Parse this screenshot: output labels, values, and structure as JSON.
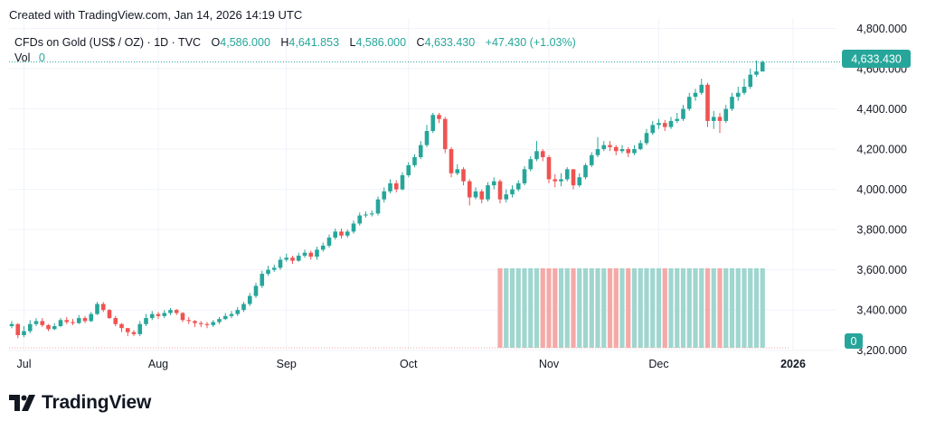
{
  "credit": "Created with TradingView.com, Jan 14, 2026 14:19 UTC",
  "symbol": {
    "name": "CFDs on Gold (US$ / OZ) · 1D · TVC",
    "o_label": "O",
    "o_value": "4,586.000",
    "h_label": "H",
    "h_value": "4,641.853",
    "l_label": "L",
    "l_value": "4,586.000",
    "c_label": "C",
    "c_value": "4,633.430",
    "change": "+47.430 (+1.03%)",
    "vol_label": "Vol",
    "vol_value": "0"
  },
  "current_price_label": "4,633.430",
  "volume_axis_label": "0",
  "brand": "TradingView",
  "colors": {
    "up": "#26a69a",
    "down": "#ef5350",
    "up_vol": "#9fd6cf",
    "down_vol": "#f5a9a7",
    "text": "#131722"
  },
  "chart_data": {
    "type": "candlestick",
    "title": "CFDs on Gold (US$ / OZ) · 1D · TVC",
    "y_ticks": [
      "4,800.000",
      "4,600.000",
      "4,400.000",
      "4,200.000",
      "4,000.000",
      "3,800.000",
      "3,600.000",
      "3,400.000",
      "3,200.000"
    ],
    "ylim": [
      3120,
      4800
    ],
    "x_ticks": [
      {
        "label": "Jul",
        "index": 2,
        "bold": false
      },
      {
        "label": "Aug",
        "index": 24,
        "bold": false
      },
      {
        "label": "Sep",
        "index": 45,
        "bold": false
      },
      {
        "label": "Oct",
        "index": 65,
        "bold": false
      },
      {
        "label": "Nov",
        "index": 88,
        "bold": false
      },
      {
        "label": "Dec",
        "index": 106,
        "bold": false
      },
      {
        "label": "2026",
        "index": 128,
        "bold": true
      }
    ],
    "volume_start_index": 80,
    "volume_end_index": 134,
    "closes": [
      3330,
      3275,
      3295,
      3330,
      3345,
      3325,
      3305,
      3320,
      3350,
      3340,
      3335,
      3360,
      3345,
      3380,
      3430,
      3400,
      3360,
      3330,
      3310,
      3290,
      3280,
      3330,
      3360,
      3380,
      3370,
      3385,
      3400,
      3385,
      3350,
      3345,
      3335,
      3330,
      3325,
      3340,
      3355,
      3370,
      3380,
      3400,
      3430,
      3470,
      3520,
      3580,
      3600,
      3610,
      3650,
      3660,
      3645,
      3670,
      3685,
      3665,
      3700,
      3720,
      3760,
      3790,
      3770,
      3790,
      3830,
      3870,
      3875,
      3880,
      3950,
      3990,
      4030,
      4000,
      4070,
      4120,
      4160,
      4220,
      4290,
      4370,
      4350,
      4200,
      4080,
      4100,
      4040,
      3960,
      3990,
      3950,
      4020,
      4040,
      3950,
      3975,
      4000,
      4030,
      4100,
      4150,
      4190,
      4160,
      4050,
      4040,
      4050,
      4100,
      4020,
      4060,
      4120,
      4170,
      4200,
      4220,
      4210,
      4190,
      4200,
      4180,
      4200,
      4230,
      4280,
      4320,
      4330,
      4310,
      4340,
      4350,
      4400,
      4460,
      4480,
      4520,
      4340,
      4360,
      4340,
      4400,
      4460,
      4480,
      4510,
      4570,
      4586,
      4633
    ],
    "highs": [
      3345,
      3335,
      3320,
      3350,
      3360,
      3360,
      3330,
      3335,
      3360,
      3365,
      3355,
      3375,
      3370,
      3390,
      3440,
      3440,
      3405,
      3370,
      3335,
      3310,
      3300,
      3345,
      3380,
      3395,
      3390,
      3400,
      3410,
      3405,
      3390,
      3365,
      3350,
      3345,
      3340,
      3350,
      3365,
      3385,
      3395,
      3415,
      3440,
      3485,
      3535,
      3595,
      3620,
      3625,
      3665,
      3680,
      3670,
      3685,
      3700,
      3695,
      3715,
      3735,
      3775,
      3805,
      3805,
      3800,
      3845,
      3885,
      3890,
      3895,
      3965,
      4010,
      4050,
      4045,
      4085,
      4135,
      4175,
      4240,
      4320,
      4380,
      4380,
      4360,
      4210,
      4125,
      4110,
      4050,
      4010,
      4000,
      4035,
      4060,
      4050,
      4000,
      4020,
      4045,
      4115,
      4165,
      4240,
      4200,
      4170,
      4075,
      4080,
      4110,
      4100,
      4080,
      4130,
      4185,
      4260,
      4240,
      4240,
      4220,
      4220,
      4210,
      4220,
      4245,
      4300,
      4340,
      4350,
      4345,
      4360,
      4380,
      4420,
      4480,
      4500,
      4550,
      4530,
      4390,
      4380,
      4420,
      4480,
      4510,
      4550,
      4600,
      4641,
      4641
    ],
    "lows": [
      3310,
      3260,
      3265,
      3285,
      3320,
      3315,
      3295,
      3300,
      3315,
      3330,
      3325,
      3330,
      3335,
      3340,
      3375,
      3390,
      3355,
      3320,
      3290,
      3270,
      3270,
      3270,
      3320,
      3350,
      3355,
      3360,
      3375,
      3375,
      3340,
      3330,
      3315,
      3315,
      3310,
      3315,
      3330,
      3350,
      3360,
      3370,
      3390,
      3420,
      3460,
      3510,
      3570,
      3590,
      3600,
      3640,
      3630,
      3640,
      3660,
      3650,
      3650,
      3690,
      3710,
      3750,
      3755,
      3760,
      3780,
      3820,
      3860,
      3865,
      3870,
      3935,
      3980,
      3985,
      3995,
      4060,
      4110,
      4150,
      4210,
      4280,
      4330,
      4180,
      4060,
      4070,
      4020,
      3920,
      3950,
      3930,
      3940,
      4000,
      3930,
      3935,
      3960,
      3990,
      4020,
      4090,
      4140,
      4140,
      4030,
      4010,
      4015,
      4040,
      4000,
      4010,
      4050,
      4110,
      4160,
      4190,
      4190,
      4170,
      4180,
      4160,
      4170,
      4195,
      4220,
      4270,
      4300,
      4290,
      4300,
      4330,
      4340,
      4390,
      4440,
      4470,
      4310,
      4300,
      4280,
      4330,
      4390,
      4440,
      4470,
      4500,
      4560,
      4586
    ]
  }
}
